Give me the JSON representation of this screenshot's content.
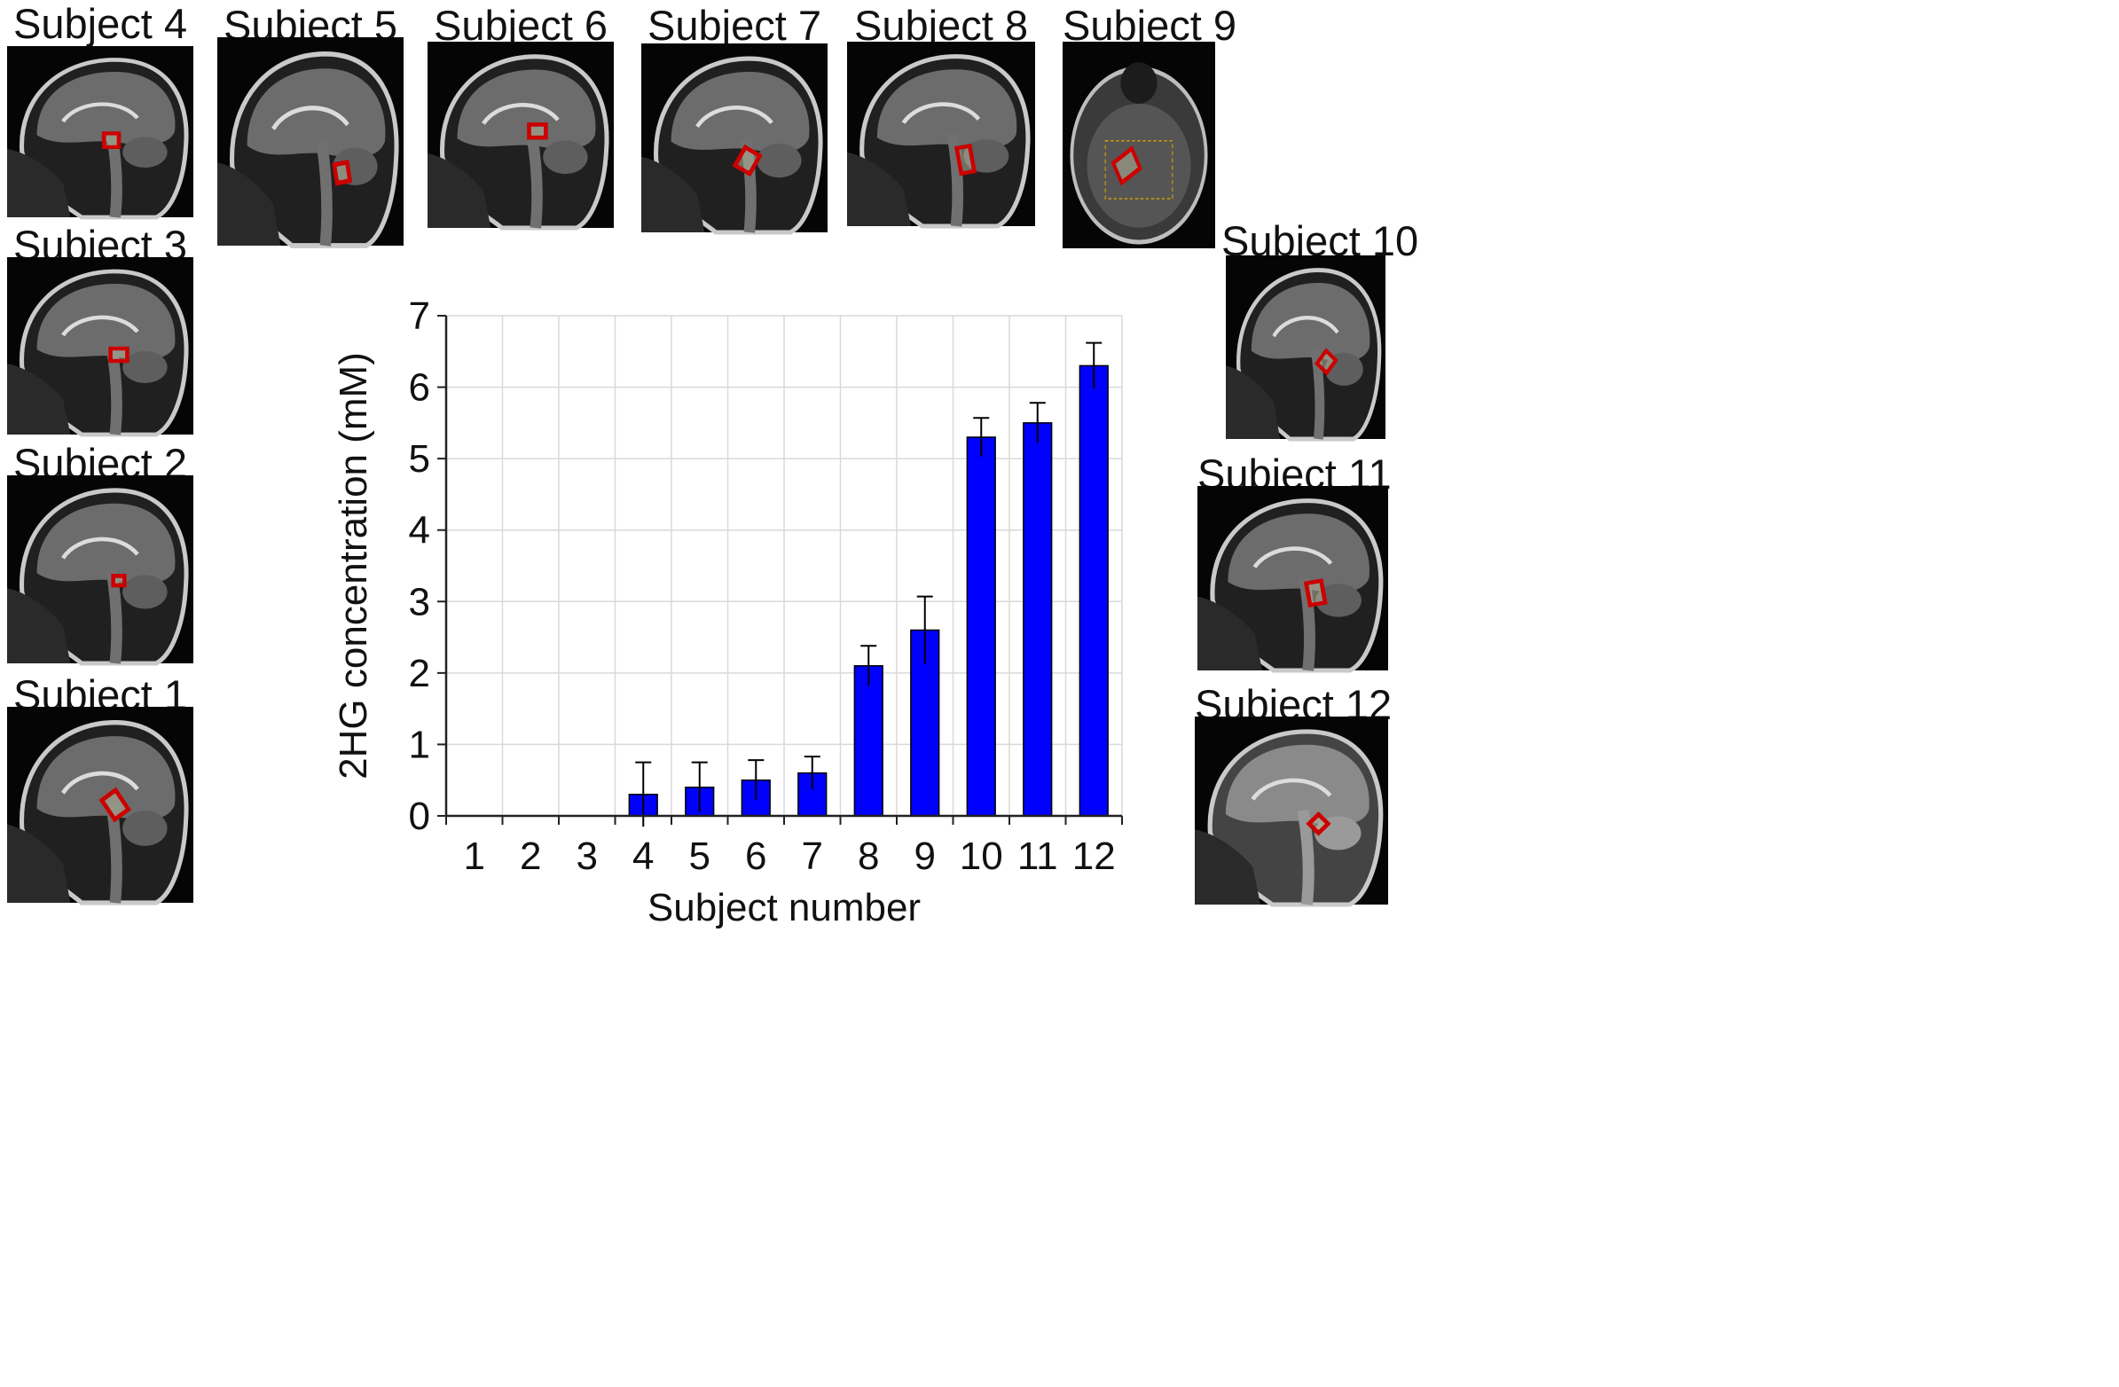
{
  "panels": [
    {
      "label": "Subject 4",
      "kind": "sagittal"
    },
    {
      "label": "Subject 5",
      "kind": "sagittal"
    },
    {
      "label": "Subject 6",
      "kind": "sagittal"
    },
    {
      "label": "Subject 7",
      "kind": "sagittal"
    },
    {
      "label": "Subject 8",
      "kind": "sagittal"
    },
    {
      "label": "Subject 9",
      "kind": "axial"
    },
    {
      "label": "Subject 3",
      "kind": "sagittal"
    },
    {
      "label": "Subject 2",
      "kind": "sagittal"
    },
    {
      "label": "Subject 1",
      "kind": "sagittal"
    },
    {
      "label": "Subject 10",
      "kind": "sagittal"
    },
    {
      "label": "Subject 11",
      "kind": "sagittal"
    },
    {
      "label": "Subject 12",
      "kind": "sagittal"
    }
  ],
  "colors": {
    "bar": "#0000ff",
    "roi": "#cc0000",
    "scan_bg": "#050505",
    "grid": "#d9d9d9"
  },
  "chart_data": {
    "type": "bar",
    "title": "",
    "xlabel": "Subject number",
    "ylabel": "2HG concentration (mM)",
    "categories": [
      "1",
      "2",
      "3",
      "4",
      "5",
      "6",
      "7",
      "8",
      "9",
      "10",
      "11",
      "12"
    ],
    "values": [
      0,
      0,
      0,
      0.3,
      0.4,
      0.5,
      0.6,
      2.1,
      2.6,
      5.3,
      5.5,
      6.3
    ],
    "errors": [
      0,
      0,
      0,
      0.45,
      0.35,
      0.28,
      0.23,
      0.28,
      0.47,
      0.27,
      0.28,
      0.32
    ],
    "ylim": [
      0,
      7
    ],
    "yticks": [
      "0",
      "1",
      "2",
      "3",
      "4",
      "5",
      "6",
      "7"
    ],
    "grid": true
  }
}
